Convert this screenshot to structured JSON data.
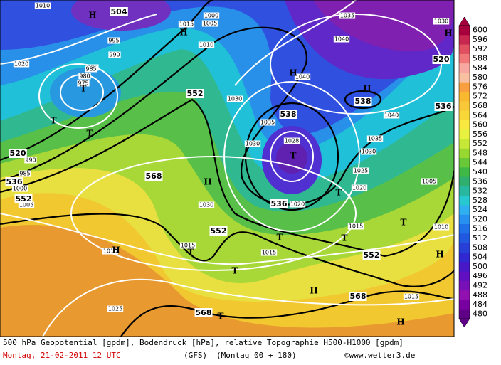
{
  "legend": {
    "values": [
      600,
      596,
      592,
      588,
      584,
      580,
      576,
      572,
      568,
      564,
      560,
      556,
      552,
      548,
      544,
      540,
      536,
      532,
      528,
      524,
      520,
      516,
      512,
      508,
      504,
      500,
      496,
      492,
      488,
      484,
      480
    ],
    "colors": [
      "#a8003c",
      "#c82850",
      "#e05060",
      "#f07878",
      "#f8a8a0",
      "#f8c0a0",
      "#f8a040",
      "#f8b830",
      "#f8c838",
      "#f8d838",
      "#f8e840",
      "#e8f040",
      "#c8e838",
      "#98d830",
      "#68c838",
      "#40b848",
      "#30b070",
      "#28b8a0",
      "#28c8d0",
      "#30b0f0",
      "#2890f0",
      "#2070e8",
      "#2058e0",
      "#2840d8",
      "#3028d0",
      "#4818c8",
      "#6010c0",
      "#7810b8",
      "#9010b0",
      "#7800a0",
      "#600088"
    ]
  },
  "contour_labels": [
    "504",
    "552",
    "552",
    "552",
    "552",
    "568",
    "568",
    "568",
    "536",
    "536",
    "536",
    "538",
    "538",
    "520",
    "520"
  ],
  "isobar_labels": [
    "1010",
    "1000",
    "1005",
    "1015",
    "1010",
    "995",
    "990",
    "985",
    "1020",
    "985",
    "980",
    "975",
    "990",
    "985",
    "1000",
    "1005",
    "1030",
    "1035",
    "1030",
    "1028",
    "1040",
    "1040",
    "1035",
    "1030",
    "1040",
    "1035",
    "1030",
    "1025",
    "1020",
    "1030",
    "1020",
    "1015",
    "1015",
    "1015",
    "1010",
    "1015",
    "1025",
    "1010",
    "1005"
  ],
  "pressure_centers": [
    "H",
    "H",
    "H",
    "H",
    "H",
    "H",
    "H",
    "H",
    "H",
    "H",
    "T",
    "T",
    "T",
    "T",
    "T",
    "T",
    "T",
    "T",
    "T",
    "T",
    "T"
  ],
  "footer": {
    "description": "500 hPa Geopotential [gpdm], Bodendruck [hPa], relative Topographie H500-H1000 [gpdm]",
    "date": "Montag, 21-02-2011  12 UTC",
    "model": "(GFS)",
    "run": "(Montag 00 + 180)",
    "source": "©www.wetter3.de"
  }
}
